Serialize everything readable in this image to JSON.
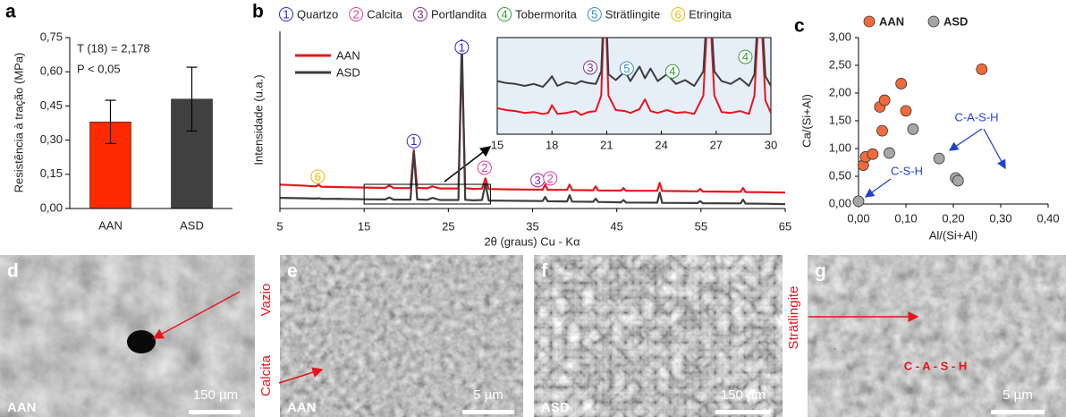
{
  "chart_data": [
    {
      "type": "bar",
      "panel": "a",
      "ylabel": "Resistência à tração (MPa)",
      "categories": [
        "AAN",
        "ASD"
      ],
      "values": [
        0.38,
        0.48
      ],
      "errors": [
        0.095,
        0.14
      ],
      "colors": [
        "#ff2a00",
        "#404040"
      ],
      "ylim": [
        0,
        0.75
      ],
      "yticks": [
        {
          "value": 0,
          "label": "0,00"
        },
        {
          "value": 0.15,
          "label": "0,15"
        },
        {
          "value": 0.3,
          "label": "0,30"
        },
        {
          "value": 0.45,
          "label": "0,45"
        },
        {
          "value": 0.6,
          "label": "0,60"
        },
        {
          "value": 0.75,
          "label": "0,75"
        }
      ],
      "annotations": [
        "T (18) = 2,178",
        "P < 0,05"
      ]
    },
    {
      "type": "line",
      "panel": "b",
      "xlabel": "2θ (graus) Cu - Kα",
      "ylabel": "Intensidade (u.a.)",
      "xlim": [
        5,
        65
      ],
      "xticks": [
        5,
        15,
        25,
        35,
        45,
        55,
        65
      ],
      "ylim": [
        0,
        100
      ],
      "phases": [
        {
          "number": "1",
          "name": "Quartzo",
          "color": "#2626d9"
        },
        {
          "number": "2",
          "name": "Calcita",
          "color": "#e03c9a"
        },
        {
          "number": "3",
          "name": "Portlandita",
          "color": "#7a2f9e"
        },
        {
          "number": "4",
          "name": "Tobermorita",
          "color": "#2e9e36"
        },
        {
          "number": "5",
          "name": "Strätlingite",
          "color": "#2f8fd0"
        },
        {
          "number": "6",
          "name": "Etringita",
          "color": "#f0b800"
        }
      ],
      "x": [
        5,
        7.5,
        9.3,
        9.6,
        9.9,
        12.5,
        15,
        17.5,
        18,
        18.5,
        20.5,
        20.9,
        21.3,
        22.5,
        23.1,
        24,
        26.2,
        26.6,
        27.0,
        28,
        29.0,
        29.4,
        29.8,
        32,
        34,
        36.2,
        36.5,
        36.8,
        39.1,
        39.4,
        39.7,
        42.2,
        42.5,
        42.8,
        45.5,
        45.8,
        46.1,
        49.8,
        50.1,
        50.4,
        54.6,
        54.9,
        55.2,
        59.7,
        60.0,
        60.3,
        62.5,
        65
      ],
      "series": [
        {
          "name": "AAN",
          "color": "#e8141c",
          "values": [
            13.5,
            13,
            12.5,
            13.5,
            12.3,
            12,
            11.8,
            11.6,
            13,
            11.5,
            11.5,
            33,
            11.6,
            11.4,
            12.5,
            11.3,
            11.3,
            87,
            11.5,
            11,
            11.2,
            17,
            11,
            10.8,
            10.7,
            10.6,
            13.5,
            10.5,
            10.5,
            13.5,
            10.4,
            10.3,
            12.5,
            10.2,
            10.1,
            11.5,
            10,
            10,
            14.5,
            9.9,
            9.7,
            11,
            9.6,
            9.4,
            11.5,
            9.3,
            9.2,
            9
          ]
        },
        {
          "name": "ASD",
          "color": "#3c3c3c",
          "values": [
            6,
            5.8,
            5.6,
            5.8,
            5.5,
            5.4,
            5.2,
            5.1,
            6.2,
            5,
            5,
            32,
            5.1,
            4.9,
            6,
            4.8,
            4.8,
            95,
            4.9,
            4.6,
            4.8,
            14,
            4.5,
            4.4,
            4.3,
            4.2,
            6.5,
            4.1,
            4,
            7.5,
            3.9,
            3.8,
            5.5,
            3.7,
            3.5,
            4.8,
            3.4,
            3.3,
            9,
            3.2,
            3.1,
            4.2,
            3,
            2.9,
            5,
            2.8,
            2.7,
            2.5
          ]
        }
      ],
      "peak_markers": [
        {
          "label": "6",
          "x": 9.5,
          "y": 18
        },
        {
          "label": "1",
          "x": 20.9,
          "y": 38
        },
        {
          "label": "1",
          "x": 26.6,
          "y": 91
        },
        {
          "label": "2",
          "x": 29.3,
          "y": 23
        },
        {
          "label": "3",
          "x": 35.6,
          "y": 16
        },
        {
          "label": "2",
          "x": 37.1,
          "y": 17
        }
      ]
    },
    {
      "type": "line",
      "xlim": [
        15,
        30
      ],
      "xticks": [
        15,
        18,
        21,
        24,
        27,
        30
      ],
      "ylim": [
        0,
        100
      ],
      "x": [
        15,
        15.5,
        16,
        16.5,
        17,
        17.5,
        17.8,
        18,
        18.3,
        18.8,
        19.3,
        19.6,
        20,
        20.4,
        20.7,
        20.9,
        21.1,
        21.5,
        22,
        22.3,
        22.8,
        23.1,
        23.4,
        23.8,
        24.3,
        24.8,
        25.3,
        25.8,
        26.3,
        26.6,
        26.9,
        27.3,
        27.8,
        28.3,
        28.8,
        29.1,
        29.4,
        29.7,
        30
      ],
      "series": [
        {
          "color": "#e8141c",
          "values": [
            27,
            25,
            24,
            22,
            23,
            21,
            22,
            30,
            21,
            22,
            24,
            20,
            23,
            24,
            40,
            150,
            40,
            25,
            24,
            22,
            26,
            36,
            24,
            22,
            25,
            22,
            23,
            21,
            40,
            150,
            40,
            23,
            22,
            24,
            21,
            40,
            150,
            35,
            22
          ]
        },
        {
          "color": "#3c3c3c",
          "values": [
            55,
            53,
            52,
            50,
            52,
            49,
            55,
            60,
            50,
            54,
            52,
            55,
            53,
            52,
            65,
            160,
            62,
            56,
            65,
            55,
            70,
            58,
            68,
            55,
            62,
            52,
            56,
            50,
            65,
            160,
            65,
            55,
            52,
            58,
            50,
            62,
            160,
            60,
            50
          ]
        }
      ],
      "peak_markers": [
        {
          "label": "3",
          "x": 20.1,
          "y": 69
        },
        {
          "label": "5",
          "x": 22.1,
          "y": 68
        },
        {
          "label": "4",
          "x": 24.6,
          "y": 65
        },
        {
          "label": "4",
          "x": 28.6,
          "y": 80
        }
      ]
    },
    {
      "type": "scatter",
      "panel": "c",
      "xlabel": "Al/(Si+Al)",
      "ylabel": "Ca/(Si+Al)",
      "xlim": [
        0,
        0.4
      ],
      "ylim": [
        0,
        3
      ],
      "xticks": [
        {
          "value": 0,
          "label": "0,00"
        },
        {
          "value": 0.1,
          "label": "0,10"
        },
        {
          "value": 0.2,
          "label": "0,20"
        },
        {
          "value": 0.3,
          "label": "0,30"
        },
        {
          "value": 0.4,
          "label": "0,40"
        }
      ],
      "yticks": [
        {
          "value": 0,
          "label": "0,00"
        },
        {
          "value": 0.5,
          "label": "0,50"
        },
        {
          "value": 1,
          "label": "1,00"
        },
        {
          "value": 1.5,
          "label": "1,50"
        },
        {
          "value": 2,
          "label": "2,00"
        },
        {
          "value": 2.5,
          "label": "2,50"
        },
        {
          "value": 3,
          "label": "3,00"
        }
      ],
      "series": [
        {
          "name": "AAN",
          "color": "#f06a3c",
          "x": [
            0.01,
            0.015,
            0.03,
            0.05,
            0.045,
            0.055,
            0.09,
            0.1,
            0.26
          ],
          "values": [
            0.7,
            0.85,
            0.9,
            1.32,
            1.75,
            1.87,
            2.17,
            1.68,
            2.43
          ]
        },
        {
          "name": "ASD",
          "color": "#a6a6a6",
          "x": [
            0,
            0.065,
            0.115,
            0.17,
            0.205,
            0.21
          ],
          "values": [
            0.05,
            0.92,
            1.35,
            0.82,
            0.47,
            0.42
          ]
        }
      ],
      "annotations": [
        "C-A-S-H",
        "C-S-H"
      ]
    }
  ],
  "micrographs": [
    {
      "panel": "d",
      "sample": "AAN",
      "scale": "150 µm",
      "callouts": [
        "Vazio"
      ]
    },
    {
      "panel": "e",
      "sample": "AAN",
      "scale": "5 µm",
      "callouts": [
        "Calcita"
      ]
    },
    {
      "panel": "f",
      "sample": "ASD",
      "scale": "150 µm"
    },
    {
      "panel": "g",
      "scale": "5 µm",
      "callouts": [
        "Strätlingite",
        "C - A - S - H"
      ]
    }
  ]
}
